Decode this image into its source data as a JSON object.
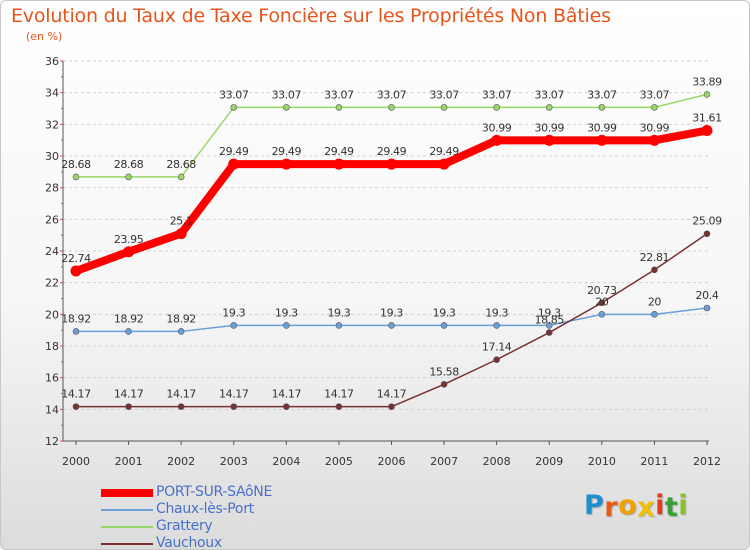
{
  "title": "Evolution du Taux de Taxe Foncière sur les Propriétés Non Bâties",
  "subtitle": "(en %)",
  "logo": {
    "letters": [
      "P",
      "r",
      "o",
      "x",
      "i",
      "t",
      "i"
    ],
    "colors": [
      "#1e8fd0",
      "#e85a1a",
      "#f0a000",
      "#f0c000",
      "#e83a1a",
      "#3aa03a",
      "#8ac030"
    ]
  },
  "chart_data": {
    "type": "line",
    "title": "Evolution du Taux de Taxe Foncière sur les Propriétés Non Bâties",
    "ylabel": "(en %)",
    "x": [
      "2000",
      "2001",
      "2002",
      "2003",
      "2004",
      "2005",
      "2006",
      "2007",
      "2008",
      "2009",
      "2010",
      "2011",
      "2012"
    ],
    "ylim": [
      12,
      36
    ],
    "yticks": [
      "12",
      "14",
      "16",
      "18",
      "20",
      "22",
      "24",
      "26",
      "28",
      "30",
      "32",
      "34",
      "36"
    ],
    "grid": "horizontal dashed",
    "legend_position": "bottom-left",
    "series": [
      {
        "name": "PORT-SUR-SAôNE",
        "color": "#ff0000",
        "values": [
          22.74,
          23.95,
          25.1,
          29.49,
          29.49,
          29.49,
          29.49,
          29.49,
          30.99,
          30.99,
          30.99,
          30.99,
          31.61
        ],
        "labels": [
          "22.74",
          "23.95",
          "25.1",
          "29.49",
          "29.49",
          "29.49",
          "29.49",
          "29.49",
          "30.99",
          "30.99",
          "30.99",
          "30.99",
          "31.61"
        ]
      },
      {
        "name": "Chaux-lès-Port",
        "color": "#6aa0d8",
        "values": [
          18.92,
          18.92,
          18.92,
          19.3,
          19.3,
          19.3,
          19.3,
          19.3,
          19.3,
          19.3,
          20,
          20,
          20.4
        ],
        "labels": [
          "18.92",
          "18.92",
          "18.92",
          "19.3",
          "19.3",
          "19.3",
          "19.3",
          "19.3",
          "19.3",
          "19.3",
          "20",
          "20",
          "20.4"
        ]
      },
      {
        "name": "Grattery",
        "color": "#98d868",
        "values": [
          28.68,
          28.68,
          28.68,
          33.07,
          33.07,
          33.07,
          33.07,
          33.07,
          33.07,
          33.07,
          33.07,
          33.07,
          33.89
        ],
        "labels": [
          "28.68",
          "28.68",
          "28.68",
          "33.07",
          "33.07",
          "33.07",
          "33.07",
          "33.07",
          "33.07",
          "33.07",
          "33.07",
          "33.07",
          "33.89"
        ]
      },
      {
        "name": "Vauchoux",
        "color": "#7a3030",
        "values": [
          14.17,
          14.17,
          14.17,
          14.17,
          14.17,
          14.17,
          14.17,
          15.58,
          17.14,
          18.85,
          20.73,
          22.81,
          25.09
        ],
        "labels": [
          "14.17",
          "14.17",
          "14.17",
          "14.17",
          "14.17",
          "14.17",
          "14.17",
          "15.58",
          "17.14",
          "18.85",
          "20.73",
          "22.81",
          "25.09"
        ]
      }
    ]
  }
}
